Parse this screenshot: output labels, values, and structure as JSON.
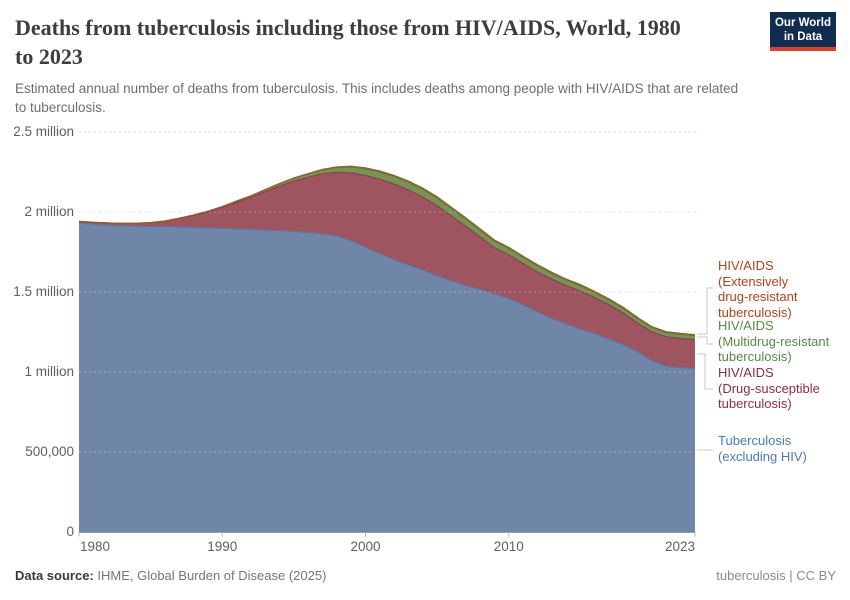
{
  "header": {
    "title": "Deaths from tuberculosis including those from HIV/AIDS, World, 1980 to 2023",
    "title_lines": [
      "Deaths from tuberculosis including those from HIV/AIDS, World, 1980",
      "to 2023"
    ],
    "subtitle": "Estimated annual number of deaths from tuberculosis. This includes deaths among people with HIV/AIDS that are related to tuberculosis.",
    "subtitle_lines": [
      "Estimated annual number of deaths from tuberculosis. This includes deaths among people with HIV/AIDS that are related",
      "to tuberculosis."
    ],
    "logo": {
      "line1": "Our World",
      "line2": "in Data"
    }
  },
  "footer": {
    "source_label": "Data source:",
    "source_value": " IHME, Global Burden of Disease (2025)",
    "rights": "tuberculosis | CC BY"
  },
  "colors": {
    "background": "#ffffff",
    "title": "#3d3d3d",
    "subtitle": "#6e6e6e",
    "axis_text": "#5e5e5e",
    "gridline": "#d9d9d9",
    "axis_line": "#999999",
    "connector": "#c8c8c8",
    "logo_bg": "#102d50",
    "logo_accent": "#dc3f31"
  },
  "chart_data": {
    "type": "area",
    "stacked": true,
    "grid": true,
    "xlim": [
      1980,
      2023
    ],
    "ylim": [
      0,
      2500000
    ],
    "unit": "deaths per year",
    "x": [
      1980,
      1981,
      1982,
      1983,
      1984,
      1985,
      1986,
      1987,
      1988,
      1989,
      1990,
      1991,
      1992,
      1993,
      1994,
      1995,
      1996,
      1997,
      1998,
      1999,
      2000,
      2001,
      2002,
      2003,
      2004,
      2005,
      2006,
      2007,
      2008,
      2009,
      2010,
      2011,
      2012,
      2013,
      2014,
      2015,
      2016,
      2017,
      2018,
      2019,
      2020,
      2021,
      2022,
      2023
    ],
    "xticks": [
      1980,
      1990,
      2000,
      2010,
      2023
    ],
    "yticks": [
      {
        "value": 0,
        "label": "0"
      },
      {
        "value": 500000,
        "label": "500,000"
      },
      {
        "value": 1000000,
        "label": "1 million"
      },
      {
        "value": 1500000,
        "label": "1.5 million"
      },
      {
        "value": 2000000,
        "label": "2 million"
      },
      {
        "value": 2500000,
        "label": "2.5 million"
      }
    ],
    "values_unit": "millions of deaths",
    "series": [
      {
        "name": "tb",
        "legend_label": "Tuberculosis (excluding HIV)",
        "label_lines": [
          "Tuberculosis",
          "(excluding HIV)"
        ],
        "color": "#7086a9",
        "edge_color": "#5f77a0",
        "text_color": "#4c78b5",
        "values": [
          1.93,
          1.923,
          1.918,
          1.914,
          1.911,
          1.909,
          1.908,
          1.906,
          1.903,
          1.9,
          1.898,
          1.895,
          1.891,
          1.887,
          1.883,
          1.878,
          1.872,
          1.864,
          1.85,
          1.82,
          1.78,
          1.74,
          1.7,
          1.668,
          1.638,
          1.6,
          1.57,
          1.54,
          1.515,
          1.487,
          1.46,
          1.42,
          1.375,
          1.335,
          1.3,
          1.268,
          1.24,
          1.205,
          1.17,
          1.125,
          1.07,
          1.035,
          1.028,
          1.02
        ]
      },
      {
        "name": "hiv_ds",
        "legend_label": "HIV/AIDS (Drug-susceptible tuberculosis)",
        "label_lines": [
          "HIV/AIDS",
          "(Drug-susceptible",
          "tuberculosis)"
        ],
        "color": "#9e5560",
        "edge_color": "#8b424f",
        "text_color": "#8c2f3b",
        "values": [
          0.012,
          0.012,
          0.013,
          0.015,
          0.018,
          0.024,
          0.034,
          0.052,
          0.075,
          0.1,
          0.13,
          0.165,
          0.2,
          0.24,
          0.28,
          0.315,
          0.345,
          0.375,
          0.398,
          0.425,
          0.448,
          0.465,
          0.475,
          0.47,
          0.455,
          0.44,
          0.405,
          0.37,
          0.33,
          0.29,
          0.272,
          0.258,
          0.25,
          0.245,
          0.24,
          0.238,
          0.225,
          0.215,
          0.198,
          0.18,
          0.18,
          0.185,
          0.182,
          0.182
        ]
      },
      {
        "name": "hiv_mdr",
        "legend_label": "HIV/AIDS (Multidrug-resistant tuberculosis)",
        "label_lines": [
          "HIV/AIDS",
          "(Multidrug-resistant",
          "tuberculosis)"
        ],
        "color": "#789355",
        "edge_color": "#5e7e3b",
        "text_color": "#558a46",
        "values": [
          0.0,
          0.0,
          0.0,
          0.0,
          0.001,
          0.001,
          0.002,
          0.003,
          0.004,
          0.005,
          0.006,
          0.008,
          0.01,
          0.012,
          0.015,
          0.018,
          0.021,
          0.025,
          0.03,
          0.036,
          0.042,
          0.044,
          0.046,
          0.047,
          0.048,
          0.047,
          0.046,
          0.045,
          0.042,
          0.04,
          0.039,
          0.038,
          0.038,
          0.036,
          0.034,
          0.033,
          0.032,
          0.03,
          0.029,
          0.028,
          0.027,
          0.026,
          0.025,
          0.025
        ]
      },
      {
        "name": "hiv_xdr",
        "legend_label": "HIV/AIDS (Extensively drug-resistant tuberculosis)",
        "label_lines": [
          "HIV/AIDS",
          "(Extensively",
          "drug-resistant",
          "tuberculosis)"
        ],
        "color": "#b0713d",
        "edge_color": "#9c5a28",
        "text_color": "#b24119",
        "values": [
          0.0,
          0.0,
          0.0,
          0.0,
          0.0,
          0.0,
          0.0,
          0.0,
          0.0,
          0.0,
          0.0,
          0.0,
          0.0,
          0.001,
          0.001,
          0.002,
          0.002,
          0.003,
          0.004,
          0.005,
          0.006,
          0.007,
          0.007,
          0.008,
          0.008,
          0.008,
          0.008,
          0.008,
          0.008,
          0.008,
          0.008,
          0.008,
          0.008,
          0.007,
          0.007,
          0.007,
          0.007,
          0.007,
          0.007,
          0.007,
          0.006,
          0.006,
          0.006,
          0.006
        ]
      }
    ]
  }
}
